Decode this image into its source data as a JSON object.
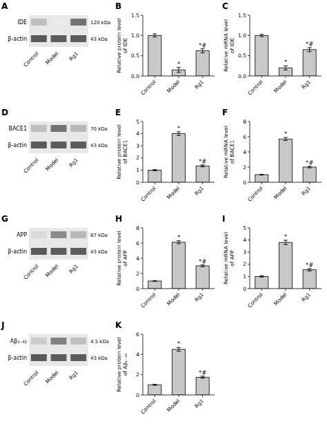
{
  "chart_data": [
    {
      "type": "blot",
      "title": "A",
      "categories": [
        "Control",
        "Model",
        "Rg1"
      ],
      "series": [
        {
          "name": "IDE",
          "kda": "120 kDa",
          "values": [
            0.75,
            0.92,
            0.45
          ]
        },
        {
          "name": "β-actin",
          "kda": "43 kDa",
          "values": [
            0.35,
            0.36,
            0.36
          ]
        }
      ]
    },
    {
      "type": "bar",
      "title": "B",
      "y_label": "Relative protein level\nof IDE",
      "categories": [
        "Control",
        "Model",
        "Rg1"
      ],
      "values": [
        1.0,
        0.15,
        0.62
      ],
      "errors": [
        0.04,
        0.06,
        0.05
      ],
      "annotations": [
        null,
        "*",
        "*#"
      ],
      "color": "#c8c8c8",
      "ylim": [
        0,
        1.5
      ],
      "yticks": [
        {
          "value": 0.0,
          "label": "0.0"
        },
        {
          "value": 0.5,
          "label": "0.5"
        },
        {
          "value": 1.0,
          "label": "1.0"
        },
        {
          "value": 1.5,
          "label": "1.5"
        }
      ]
    },
    {
      "type": "bar",
      "title": "C",
      "y_label": "Relative mRNA level\nof IDE",
      "categories": [
        "Control",
        "Model",
        "Rg1"
      ],
      "values": [
        1.0,
        0.2,
        0.65
      ],
      "errors": [
        0.03,
        0.05,
        0.05
      ],
      "annotations": [
        null,
        "*",
        "*#"
      ],
      "color": "#c8c8c8",
      "ylim": [
        0,
        1.5
      ],
      "yticks": [
        {
          "value": 0.0,
          "label": "0.0"
        },
        {
          "value": 0.5,
          "label": "0.5"
        },
        {
          "value": 1.0,
          "label": "1.0"
        },
        {
          "value": 1.5,
          "label": "1.5"
        }
      ]
    },
    {
      "type": "blot",
      "title": "D",
      "categories": [
        "Control",
        "Model",
        "Rg1"
      ],
      "series": [
        {
          "name": "BACE1",
          "kda": "70 kDa",
          "values": [
            0.75,
            0.45,
            0.72
          ]
        },
        {
          "name": "β-actin",
          "kda": "43 kDa",
          "values": [
            0.35,
            0.36,
            0.36
          ]
        }
      ]
    },
    {
      "type": "bar",
      "title": "E",
      "y_label": "Relative protein level\nof BACE1",
      "categories": [
        "Control",
        "Model",
        "Rg1"
      ],
      "values": [
        1.0,
        4.0,
        1.35
      ],
      "errors": [
        0.05,
        0.15,
        0.08
      ],
      "annotations": [
        null,
        "*",
        "*#"
      ],
      "color": "#c8c8c8",
      "ylim": [
        0,
        5.0
      ],
      "yticks": [
        0,
        1,
        2,
        3,
        4,
        5
      ]
    },
    {
      "type": "bar",
      "title": "F",
      "y_label": "Relative mRNA level\nof BACE1",
      "categories": [
        "Control",
        "Model",
        "Rg1"
      ],
      "values": [
        1.0,
        5.7,
        2.0
      ],
      "errors": [
        0.05,
        0.2,
        0.1
      ],
      "annotations": [
        null,
        "*",
        "*#"
      ],
      "color": "#c8c8c8",
      "ylim": [
        0,
        8.0
      ],
      "yticks": [
        0,
        2,
        4,
        6,
        8
      ]
    },
    {
      "type": "blot",
      "title": "G",
      "categories": [
        "Control",
        "Model",
        "Rg1"
      ],
      "series": [
        {
          "name": "APP",
          "kda": "87 kDa",
          "values": [
            0.85,
            0.55,
            0.72
          ]
        },
        {
          "name": "β-actin",
          "kda": "43 kDa",
          "values": [
            0.35,
            0.36,
            0.36
          ]
        }
      ]
    },
    {
      "type": "bar",
      "title": "H",
      "y_label": "Relative protein level\nof APP",
      "categories": [
        "Control",
        "Model",
        "Rg1"
      ],
      "values": [
        1.0,
        6.1,
        3.0
      ],
      "errors": [
        0.05,
        0.2,
        0.12
      ],
      "annotations": [
        null,
        "*",
        "*#"
      ],
      "color": "#c8c8c8",
      "ylim": [
        0,
        8.0
      ],
      "yticks": [
        0,
        2,
        4,
        6,
        8
      ]
    },
    {
      "type": "bar",
      "title": "I",
      "y_label": "Relative mRNA level\nof APP",
      "categories": [
        "Control",
        "Model",
        "Rg1"
      ],
      "values": [
        1.0,
        3.8,
        1.55
      ],
      "errors": [
        0.05,
        0.18,
        0.1
      ],
      "annotations": [
        null,
        "*",
        "*#"
      ],
      "color": "#c8c8c8",
      "ylim": [
        0,
        5.0
      ],
      "yticks": [
        0,
        1,
        2,
        3,
        4,
        5
      ]
    },
    {
      "type": "blot",
      "title": "J",
      "categories": [
        "Control",
        "Model",
        "Rg1"
      ],
      "series": [
        {
          "name": "Aβ₁₋₄₂",
          "kda": "4.5 kDa",
          "values": [
            0.8,
            0.5,
            0.75
          ]
        },
        {
          "name": "β-actin",
          "kda": "43 kDa",
          "values": [
            0.35,
            0.36,
            0.36
          ]
        }
      ]
    },
    {
      "type": "bar",
      "title": "K",
      "y_label": "Relative protein level\nof Aβ₁₋₄₂",
      "categories": [
        "Control",
        "Model",
        "Rg1"
      ],
      "values": [
        1.0,
        4.5,
        1.75
      ],
      "errors": [
        0.05,
        0.18,
        0.1
      ],
      "annotations": [
        null,
        "*",
        "*#"
      ],
      "color": "#c8c8c8",
      "ylim": [
        0,
        6.0
      ],
      "yticks": [
        0,
        2,
        4,
        6
      ]
    }
  ]
}
